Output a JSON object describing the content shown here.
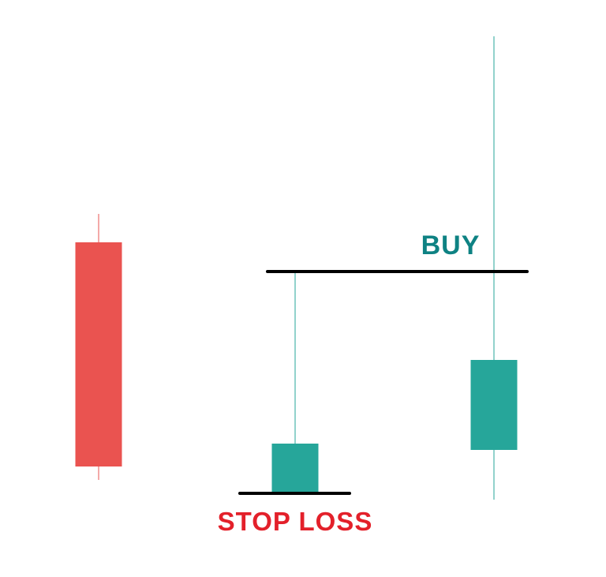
{
  "chart_data": {
    "type": "candlestick",
    "title": "",
    "xlabel": "",
    "ylabel": "",
    "axes_visible": false,
    "grid": false,
    "candles": [
      {
        "index": 1,
        "open": 364,
        "high": 400,
        "low": 63,
        "close": 80,
        "direction": "bearish",
        "color": "#ea5350"
      },
      {
        "index": 2,
        "open": 46,
        "high": 327,
        "low": 46,
        "close": 109,
        "direction": "bullish",
        "color": "#26a69a"
      },
      {
        "index": 3,
        "open": 101,
        "high": 625,
        "low": 38,
        "close": 215,
        "direction": "bullish",
        "color": "#26a69a"
      }
    ],
    "levels": [
      {
        "label": "BUY",
        "value": 327,
        "from_candle": 2,
        "to_candle": 3,
        "label_color": "#0e8283",
        "line_color": "#000000"
      },
      {
        "label": "STOP LOSS",
        "value": 46,
        "from_candle": 2,
        "to_candle": 2,
        "label_color": "#e3202a",
        "line_color": "#000000"
      }
    ],
    "y_range": [
      0,
      671
    ]
  }
}
